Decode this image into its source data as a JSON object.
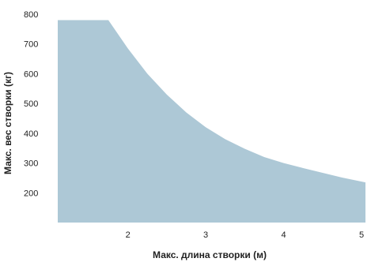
{
  "chart_data": {
    "type": "area",
    "xlabel": "Макс. длина створки (м)",
    "ylabel": "Макс. вес створки (кг)",
    "xlim": [
      1.1,
      5.05
    ],
    "ylim": [
      100,
      800
    ],
    "x_ticks": [
      {
        "value": 2,
        "label": "2"
      },
      {
        "value": 3,
        "label": "3"
      },
      {
        "value": 4,
        "label": "4"
      },
      {
        "value": 5,
        "label": "5"
      }
    ],
    "y_ticks": [
      {
        "value": 200,
        "label": "200"
      },
      {
        "value": 300,
        "label": "300"
      },
      {
        "value": 400,
        "label": "400"
      },
      {
        "value": 500,
        "label": "500"
      },
      {
        "value": 600,
        "label": "600"
      },
      {
        "value": 700,
        "label": "700"
      },
      {
        "value": 800,
        "label": "800"
      }
    ],
    "grid": false,
    "fill_color": "#adc8d6",
    "series": [
      {
        "x": [
          1.1,
          1.75,
          2.0,
          2.25,
          2.5,
          2.75,
          3.0,
          3.25,
          3.5,
          3.75,
          4.0,
          4.25,
          4.5,
          4.75,
          5.05
        ],
        "values": [
          780,
          780,
          685,
          600,
          530,
          470,
          420,
          380,
          348,
          320,
          300,
          283,
          267,
          251,
          235
        ]
      }
    ]
  }
}
